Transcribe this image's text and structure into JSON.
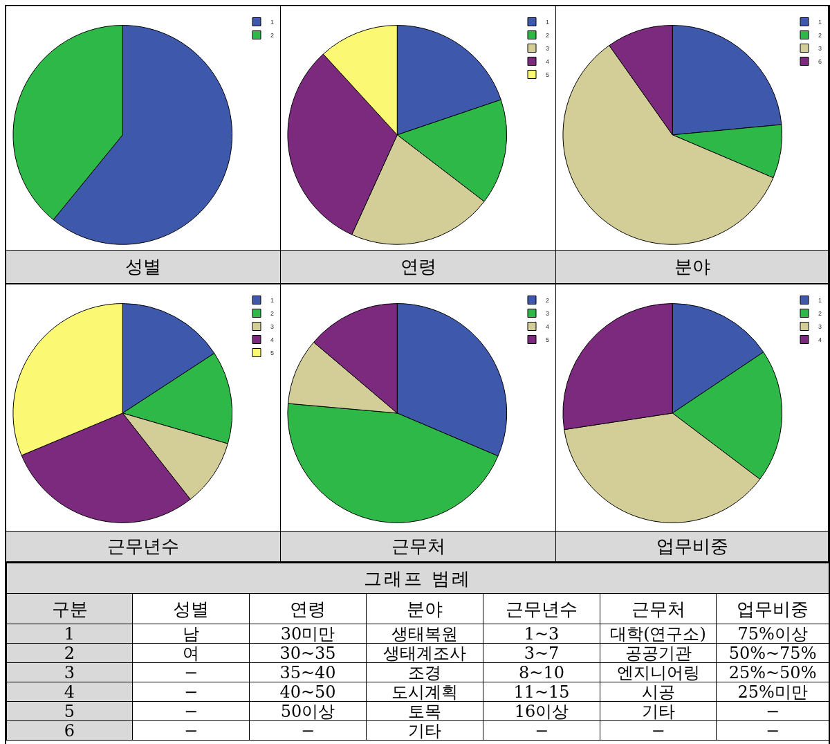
{
  "chart_data": [
    {
      "type": "pie",
      "title": "성별",
      "categories": [
        "1",
        "2"
      ],
      "values": [
        60.9,
        39.1
      ],
      "colors": [
        "#3e58ac",
        "#2eb848"
      ],
      "legend": "top right"
    },
    {
      "type": "pie",
      "title": "연령",
      "categories": [
        "1",
        "2",
        "3",
        "4",
        "5"
      ],
      "values": [
        19.8,
        15.6,
        21.4,
        31.4,
        11.8
      ],
      "colors": [
        "#3e58ac",
        "#2eb848",
        "#d3ce97",
        "#7b2a7e",
        "#fbf873"
      ],
      "legend": "top right"
    },
    {
      "type": "pie",
      "title": "분야",
      "categories": [
        "1",
        "2",
        "3",
        "6"
      ],
      "values": [
        23.5,
        7.9,
        58.8,
        9.8
      ],
      "colors": [
        "#3e58ac",
        "#2eb848",
        "#d3ce97",
        "#7b2a7e"
      ],
      "legend": "top right"
    },
    {
      "type": "pie",
      "title": "근무년수",
      "categories": [
        "1",
        "2",
        "3",
        "4",
        "5"
      ],
      "values": [
        15.8,
        13.7,
        9.9,
        29.3,
        31.3
      ],
      "colors": [
        "#3e58ac",
        "#2eb848",
        "#d3ce97",
        "#7b2a7e",
        "#fbf873"
      ],
      "legend": "top right"
    },
    {
      "type": "pie",
      "title": "근무처",
      "categories": [
        "2",
        "3",
        "4",
        "5"
      ],
      "values": [
        31.4,
        45.0,
        9.8,
        13.8
      ],
      "colors": [
        "#3e58ac",
        "#2eb848",
        "#d3ce97",
        "#7b2a7e"
      ],
      "legend": "top right"
    },
    {
      "type": "pie",
      "title": "업무비중",
      "categories": [
        "1",
        "2",
        "3",
        "4"
      ],
      "values": [
        15.6,
        19.7,
        37.3,
        27.4
      ],
      "colors": [
        "#3e58ac",
        "#2eb848",
        "#d3ce97",
        "#7b2a7e"
      ],
      "legend": "top right"
    },
    {
      "type": "heatmap",
      "title": "그래프 범례",
      "ylabel": "구분",
      "categories": [
        "성별",
        "연령",
        "분야",
        "근무년수",
        "근무처",
        "업무비중"
      ],
      "y_categories": [
        "1",
        "2",
        "3",
        "4",
        "5",
        "6"
      ],
      "cells": [
        [
          null,
          null,
          null,
          null,
          null,
          null
        ],
        [
          null,
          null,
          null,
          null,
          null,
          null
        ],
        [
          null,
          null,
          null,
          null,
          null,
          null
        ],
        [
          null,
          null,
          null,
          null,
          null,
          null
        ],
        [
          null,
          null,
          null,
          null,
          null,
          null
        ],
        [
          null,
          null,
          null,
          null,
          null,
          null
        ]
      ],
      "cell_labels": [
        [
          "남",
          "30미만",
          "생태복원",
          "1~3",
          "대학(연구소)",
          "75%이상"
        ],
        [
          "여",
          "30~35",
          "생태계조사",
          "3~7",
          "공공기관",
          "50%~75%"
        ],
        [
          "−",
          "35~40",
          "조경",
          "8~10",
          "엔지니어링",
          "25%~50%"
        ],
        [
          "−",
          "40~50",
          "도시계획",
          "11~15",
          "시공",
          "25%미만"
        ],
        [
          "−",
          "50이상",
          "토목",
          "16이상",
          "기타",
          "−"
        ],
        [
          "−",
          "−",
          "기타",
          "−",
          "−",
          "−"
        ]
      ]
    }
  ]
}
